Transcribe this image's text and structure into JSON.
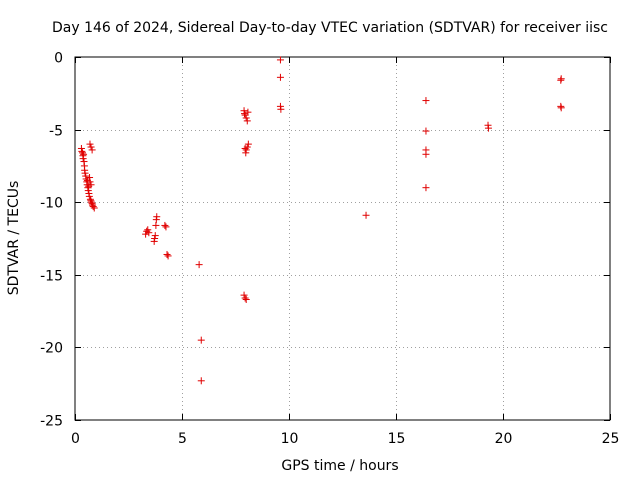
{
  "chart_data": {
    "type": "scatter",
    "title": "Day 146 of 2024, Sidereal Day-to-day VTEC variation (SDTVAR) for receiver iisc",
    "xlabel": "GPS time / hours",
    "ylabel": "SDTVAR / TECUs",
    "xlim": [
      0,
      25
    ],
    "ylim": [
      -25,
      0
    ],
    "xticks": [
      0,
      5,
      10,
      15,
      20,
      25
    ],
    "yticks": [
      0,
      -5,
      -10,
      -15,
      -20,
      -25
    ],
    "xtick_labels": [
      "0",
      "5",
      "10",
      "15",
      "20",
      "25"
    ],
    "ytick_labels": [
      "0",
      "-5",
      "-10",
      "-15",
      "-20",
      "-25"
    ],
    "grid": true,
    "marker": "plus",
    "color": "#e00000",
    "series": [
      {
        "name": "SDTVAR",
        "points": [
          [
            0.3,
            -6.3
          ],
          [
            0.32,
            -6.5
          ],
          [
            0.35,
            -6.6
          ],
          [
            0.37,
            -6.8
          ],
          [
            0.38,
            -7.0
          ],
          [
            0.4,
            -6.7
          ],
          [
            0.42,
            -7.2
          ],
          [
            0.44,
            -7.5
          ],
          [
            0.45,
            -7.8
          ],
          [
            0.47,
            -8.0
          ],
          [
            0.5,
            -8.2
          ],
          [
            0.52,
            -8.4
          ],
          [
            0.55,
            -8.6
          ],
          [
            0.57,
            -8.8
          ],
          [
            0.58,
            -8.5
          ],
          [
            0.6,
            -9.0
          ],
          [
            0.62,
            -9.2
          ],
          [
            0.64,
            -8.9
          ],
          [
            0.65,
            -9.4
          ],
          [
            0.67,
            -9.6
          ],
          [
            0.68,
            -8.3
          ],
          [
            0.7,
            -8.6
          ],
          [
            0.72,
            -9.8
          ],
          [
            0.74,
            -9.9
          ],
          [
            0.75,
            -8.8
          ],
          [
            0.77,
            -10.0
          ],
          [
            0.8,
            -10.1
          ],
          [
            0.82,
            -10.2
          ],
          [
            0.85,
            -10.3
          ],
          [
            0.9,
            -10.4
          ],
          [
            0.7,
            -6.0
          ],
          [
            0.75,
            -6.2
          ],
          [
            0.8,
            -6.4
          ],
          [
            3.3,
            -12.2
          ],
          [
            3.35,
            -12.0
          ],
          [
            3.4,
            -11.9
          ],
          [
            3.45,
            -12.1
          ],
          [
            3.7,
            -12.7
          ],
          [
            3.72,
            -12.5
          ],
          [
            3.75,
            -12.3
          ],
          [
            3.78,
            -11.6
          ],
          [
            3.8,
            -11.2
          ],
          [
            3.82,
            -11.0
          ],
          [
            4.2,
            -11.6
          ],
          [
            4.25,
            -11.7
          ],
          [
            4.3,
            -13.6
          ],
          [
            4.35,
            -13.7
          ],
          [
            5.8,
            -14.3
          ],
          [
            5.9,
            -19.5
          ],
          [
            5.9,
            -22.3
          ],
          [
            7.9,
            -3.7
          ],
          [
            7.92,
            -3.9
          ],
          [
            7.95,
            -4.0
          ],
          [
            8.0,
            -4.2
          ],
          [
            8.05,
            -4.4
          ],
          [
            8.08,
            -3.8
          ],
          [
            7.95,
            -6.3
          ],
          [
            7.98,
            -6.6
          ],
          [
            8.0,
            -6.4
          ],
          [
            8.05,
            -6.2
          ],
          [
            8.1,
            -6.0
          ],
          [
            7.9,
            -16.4
          ],
          [
            7.95,
            -16.6
          ],
          [
            8.0,
            -16.7
          ],
          [
            9.6,
            -0.2
          ],
          [
            9.6,
            -1.4
          ],
          [
            9.6,
            -3.4
          ],
          [
            9.62,
            -3.6
          ],
          [
            13.6,
            -10.9
          ],
          [
            16.4,
            -3.0
          ],
          [
            16.4,
            -5.1
          ],
          [
            16.4,
            -6.4
          ],
          [
            16.4,
            -6.7
          ],
          [
            16.4,
            -9.0
          ],
          [
            19.3,
            -4.7
          ],
          [
            19.32,
            -4.9
          ],
          [
            22.7,
            -1.6
          ],
          [
            22.72,
            -1.5
          ],
          [
            22.7,
            -3.4
          ],
          [
            22.72,
            -3.5
          ]
        ]
      }
    ]
  }
}
